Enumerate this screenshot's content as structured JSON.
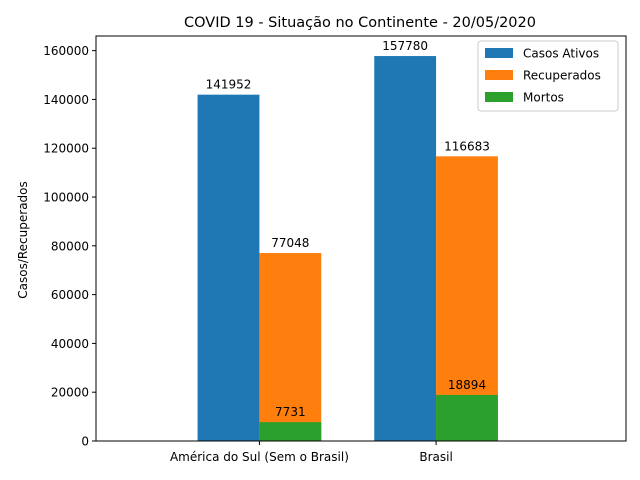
{
  "chart_data": {
    "type": "bar",
    "title": "COVID 19 - Situação no Continente - 20/05/2020",
    "xlabel": "",
    "ylabel": "Casos/Recuperados",
    "categories": [
      "América do Sul (Sem o Brasil)",
      "Brasil"
    ],
    "series": [
      {
        "name": "Casos Ativos",
        "values": [
          141952,
          157780
        ],
        "color": "#1f77b4"
      },
      {
        "name": "Recuperados",
        "values": [
          77048,
          116683
        ],
        "color": "#ff7f0e"
      },
      {
        "name": "Mortos",
        "values": [
          7731,
          18894
        ],
        "color": "#2ca02c"
      }
    ],
    "ylim": [
      0,
      166000
    ],
    "yticks": [
      0,
      20000,
      40000,
      60000,
      80000,
      100000,
      120000,
      140000,
      160000
    ],
    "grid": false,
    "legend_position": "top-right"
  }
}
